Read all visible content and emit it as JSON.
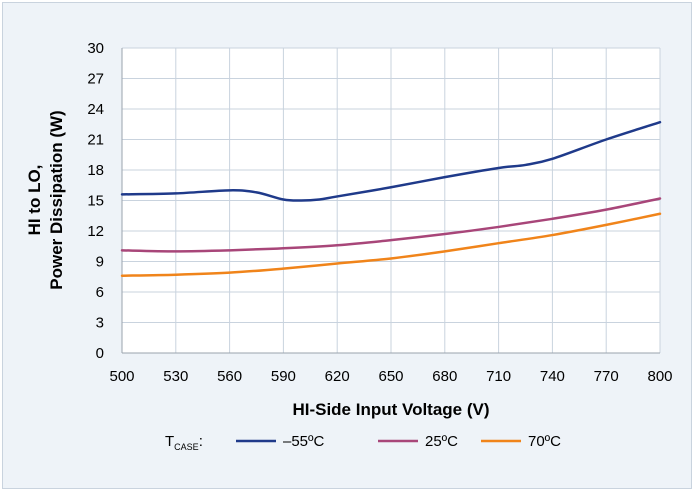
{
  "chart_data": {
    "type": "line",
    "xlabel": "HI-Side Input Voltage (V)",
    "ylabel_line1": "HI to LO,",
    "ylabel_line2": "Power Dissipation (W)",
    "xlim": [
      500,
      800
    ],
    "ylim": [
      0,
      30
    ],
    "xticks": [
      500,
      530,
      560,
      590,
      620,
      650,
      680,
      710,
      740,
      770,
      800
    ],
    "yticks": [
      0,
      3,
      6,
      9,
      12,
      15,
      18,
      21,
      24,
      27,
      30
    ],
    "grid": true,
    "legend": {
      "position": "bottom",
      "label_main": "T",
      "label_sub": "CASE",
      "label_suffix": ":"
    },
    "series": [
      {
        "name": "–55ºC",
        "color": "#1f3a8a",
        "x": [
          500,
          530,
          560,
          575,
          590,
          600,
          610,
          620,
          650,
          680,
          710,
          725,
          740,
          770,
          800
        ],
        "y": [
          15.6,
          15.7,
          16.0,
          15.8,
          15.1,
          15.0,
          15.1,
          15.4,
          16.3,
          17.3,
          18.2,
          18.5,
          19.1,
          21.0,
          22.7
        ]
      },
      {
        "name": "25ºC",
        "color": "#a84679",
        "x": [
          500,
          530,
          560,
          590,
          620,
          650,
          680,
          710,
          740,
          770,
          800
        ],
        "y": [
          10.1,
          10.0,
          10.1,
          10.3,
          10.6,
          11.1,
          11.7,
          12.4,
          13.2,
          14.1,
          15.2
        ]
      },
      {
        "name": "70ºC",
        "color": "#f0841a",
        "x": [
          500,
          530,
          560,
          590,
          620,
          650,
          680,
          710,
          740,
          770,
          800
        ],
        "y": [
          7.6,
          7.7,
          7.9,
          8.3,
          8.8,
          9.3,
          10.0,
          10.8,
          11.6,
          12.6,
          13.7
        ]
      }
    ]
  }
}
